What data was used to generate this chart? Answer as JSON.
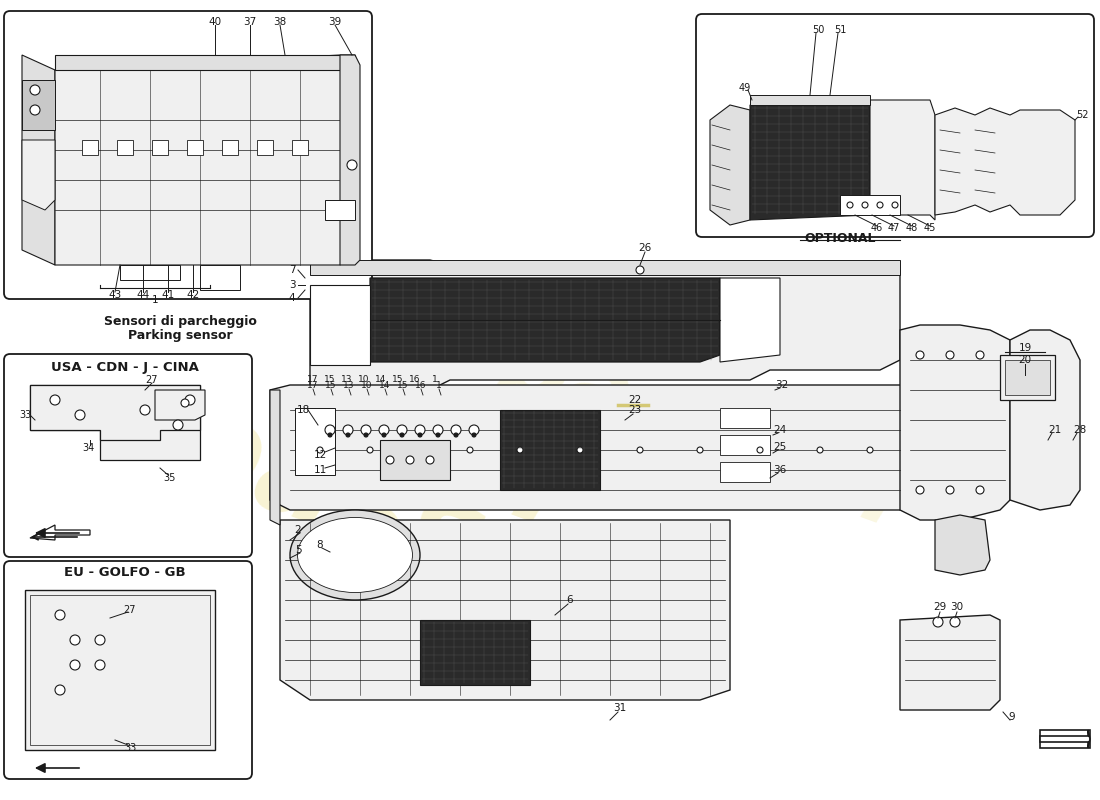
{
  "bg_color": "#ffffff",
  "line_color": "#1a1a1a",
  "fill_light": "#f0f0f0",
  "fill_mid": "#e0e0e0",
  "fill_dark": "#c8c8c8",
  "mesh_dark": "#2a2a2a",
  "watermark_color": "#e8d870",
  "label_parking_it": "Sensori di parcheggio",
  "label_parking_en": "Parking sensor",
  "label_usa": "USA - CDN - J - CINA",
  "label_eu": "EU - GOLFO - GB",
  "label_optional": "OPTIONAL"
}
